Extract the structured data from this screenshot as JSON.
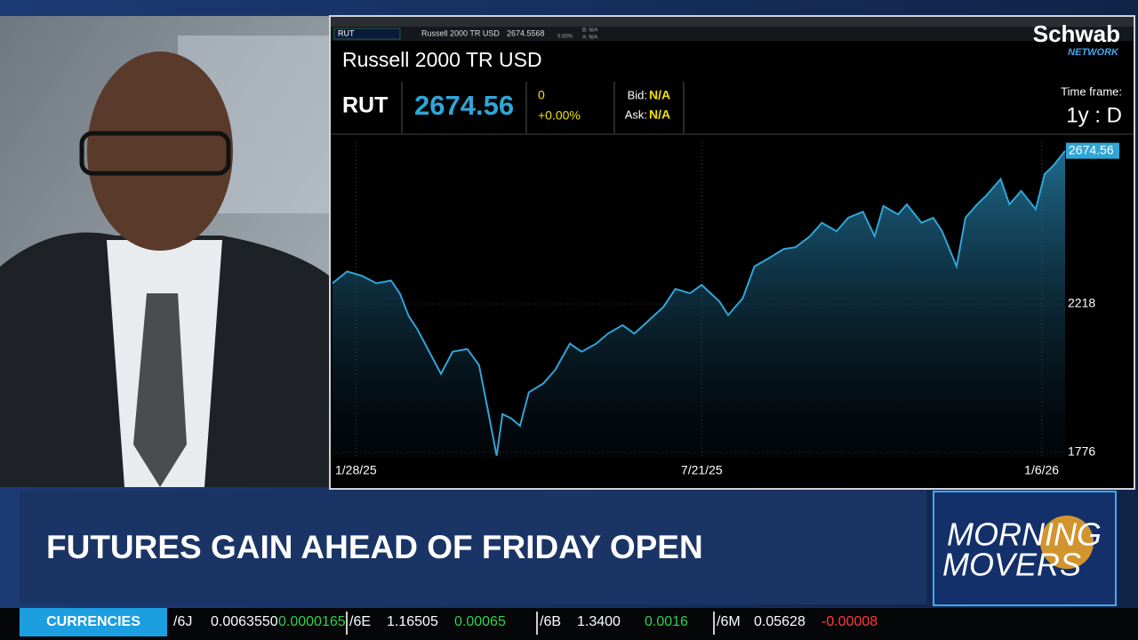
{
  "window": {
    "symbol": "RUT",
    "name": "Russell 2000 TR USD",
    "last": "2674.5568",
    "pct": "0.00%",
    "bid": "B: N/A",
    "ask": "A: N/A"
  },
  "brand": {
    "name": "Schwab",
    "sub": "NETWORK"
  },
  "quote": {
    "symbol": "RUT",
    "price": "2674.56",
    "change": "0",
    "pct": "+0.00%",
    "bid_label": "Bid:",
    "bid": "N/A",
    "ask_label": "Ask:",
    "ask": "N/A",
    "timeframe_label": "Time frame:",
    "timeframe": "1y : D"
  },
  "chart_data": {
    "type": "line",
    "title": "Russell 2000 TR USD",
    "color": "#2fa6d8",
    "x": [
      0,
      5,
      10,
      15,
      20,
      23,
      26,
      29,
      33,
      37,
      41,
      46,
      50,
      53,
      56,
      58,
      61,
      64,
      67,
      72,
      76,
      81,
      85,
      90,
      94,
      99,
      103,
      108,
      113,
      117,
      122,
      126,
      129,
      132,
      135,
      140,
      144,
      149,
      154,
      158,
      163,
      167,
      172,
      176,
      181,
      185,
      188,
      193,
      196,
      201,
      205,
      208,
      213,
      216,
      220,
      223,
      228,
      231,
      235,
      240,
      243,
      246,
      250
    ],
    "values": [
      2280,
      2315,
      2302,
      2280,
      2288,
      2249,
      2182,
      2142,
      2076,
      2010,
      2076,
      2084,
      2036,
      1903,
      1766,
      1890,
      1877,
      1855,
      1955,
      1982,
      2022,
      2100,
      2076,
      2100,
      2130,
      2155,
      2130,
      2170,
      2210,
      2263,
      2250,
      2275,
      2250,
      2226,
      2185,
      2235,
      2330,
      2355,
      2382,
      2387,
      2420,
      2460,
      2435,
      2475,
      2493,
      2420,
      2510,
      2485,
      2515,
      2460,
      2475,
      2435,
      2330,
      2475,
      2515,
      2540,
      2590,
      2515,
      2555,
      2500,
      2605,
      2630,
      2674.56
    ],
    "xlim": [
      0,
      250
    ],
    "xticks": [
      {
        "value": 8,
        "label": "1/28/25"
      },
      {
        "value": 126,
        "label": "7/21/25"
      },
      {
        "value": 242,
        "label": "1/6/26"
      }
    ],
    "ylim": [
      1760,
      2700
    ],
    "yticks": [
      1776,
      2218
    ],
    "grid": true
  },
  "lower_third": {
    "headline": "FUTURES GAIN AHEAD OF FRIDAY OPEN",
    "show_line1": "MORNING",
    "show_line2": "MOVERS"
  },
  "ticker": {
    "label": "CURRENCIES",
    "items": [
      {
        "symbol": "/6J",
        "price": "0.0063550",
        "change": "0.0000165"
      },
      {
        "symbol": "/6E",
        "price": "1.16505",
        "change": "0.00065"
      },
      {
        "symbol": "/6B",
        "price": "1.3400",
        "change": "0.0016"
      },
      {
        "symbol": "/6M",
        "price": "0.05628",
        "change": "-0.00008"
      }
    ]
  }
}
